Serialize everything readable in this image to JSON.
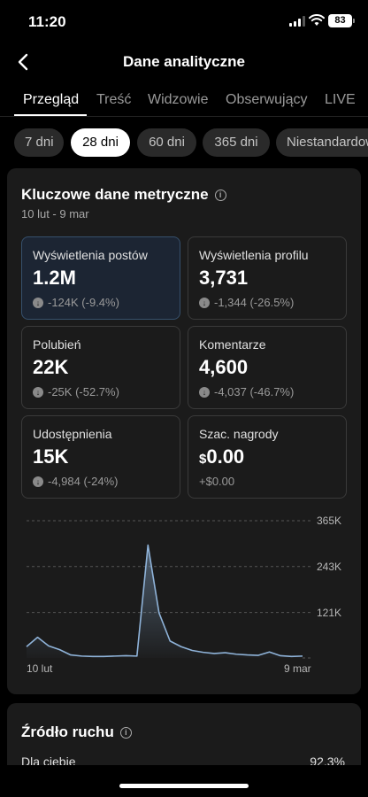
{
  "status_bar": {
    "time": "11:20",
    "battery": "83"
  },
  "header": {
    "title": "Dane analityczne"
  },
  "tabs": [
    {
      "label": "Przegląd",
      "active": true
    },
    {
      "label": "Treść"
    },
    {
      "label": "Widzowie"
    },
    {
      "label": "Obserwujący"
    },
    {
      "label": "LIVE"
    }
  ],
  "periods": [
    {
      "label": "7 dni"
    },
    {
      "label": "28 dni",
      "active": true
    },
    {
      "label": "60 dni"
    },
    {
      "label": "365 dni"
    },
    {
      "label": "Niestandardowy"
    }
  ],
  "key_metrics": {
    "title": "Kluczowe dane metryczne",
    "date_range": "10 lut - 9 mar",
    "items": [
      {
        "label": "Wyświetlenia postów",
        "value": "1.2M",
        "change": "-124K (-9.4%)",
        "active": true
      },
      {
        "label": "Wyświetlenia profilu",
        "value": "3,731",
        "change": "-1,344 (-26.5%)"
      },
      {
        "label": "Polubień",
        "value": "22K",
        "change": "-25K (-52.7%)"
      },
      {
        "label": "Komentarze",
        "value": "4,600",
        "change": "-4,037 (-46.7%)"
      },
      {
        "label": "Udostępnienia",
        "value": "15K",
        "change": "-4,984 (-24%)"
      },
      {
        "label": "Szac. nagrody",
        "currency": "$",
        "value": "0.00",
        "change": "+$0.00"
      }
    ]
  },
  "chart_data": {
    "type": "area",
    "x_start_label": "10 lut",
    "x_end_label": "9 mar",
    "y_tick_labels": [
      "365K",
      "243K",
      "121K"
    ],
    "y_ticks": [
      365000,
      243000,
      121000
    ],
    "ylim": [
      0,
      365000
    ],
    "grid": true,
    "color": "#8fb3d9",
    "values": [
      30000,
      55000,
      32000,
      22000,
      8000,
      5000,
      4000,
      4000,
      5000,
      6000,
      5000,
      300000,
      120000,
      45000,
      30000,
      20000,
      15000,
      12000,
      14000,
      10000,
      8000,
      7000,
      16000,
      6000,
      4000,
      5000
    ]
  },
  "traffic_source": {
    "title": "Źródło ruchu",
    "rows": [
      {
        "label": "Dla ciebie",
        "value": "92.3%"
      }
    ]
  }
}
